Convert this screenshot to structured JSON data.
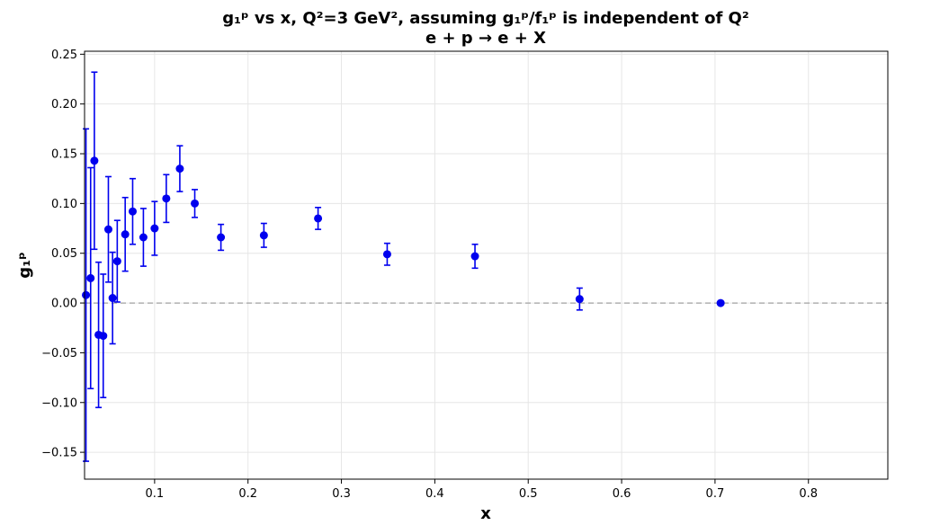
{
  "chart_data": {
    "type": "scatter",
    "title": "g₁ᵖ vs x, Q²=3 GeV²,  assuming g₁ᵖ/f₁ᵖ is independent of Q²",
    "subtitle": "e + p → e + X",
    "xlabel": "x",
    "ylabel": "g₁ᵖ",
    "xlim": [
      0.025,
      0.885
    ],
    "ylim": [
      -0.177,
      0.253
    ],
    "xticks": [
      0.1,
      0.2,
      0.3,
      0.4,
      0.5,
      0.6,
      0.7,
      0.8
    ],
    "xtick_labels": [
      "0.1",
      "0.2",
      "0.3",
      "0.4",
      "0.5",
      "0.6",
      "0.7",
      "0.8"
    ],
    "yticks": [
      -0.15,
      -0.1,
      -0.05,
      0.0,
      0.05,
      0.1,
      0.15,
      0.2,
      0.25
    ],
    "ytick_labels": [
      "−0.15",
      "−0.10",
      "−0.05",
      "0.00",
      "0.05",
      "0.10",
      "0.15",
      "0.20",
      "0.25"
    ],
    "grid": true,
    "legend": null,
    "reference_line": {
      "y": 0.0,
      "style": "dashed",
      "color": "#b0b0b0"
    },
    "marker_color": "#0000ee",
    "series": [
      {
        "x": [
          0.0265,
          0.0315,
          0.0355,
          0.04,
          0.045,
          0.0505,
          0.055,
          0.06,
          0.0685,
          0.0765,
          0.088,
          0.1,
          0.1125,
          0.127,
          0.143,
          0.171,
          0.217,
          0.275,
          0.349,
          0.443,
          0.555,
          0.706
        ],
        "y": [
          0.008,
          0.025,
          0.143,
          -0.032,
          -0.033,
          0.074,
          0.005,
          0.042,
          0.069,
          0.092,
          0.066,
          0.075,
          0.105,
          0.135,
          0.1,
          0.066,
          0.068,
          0.085,
          0.049,
          0.047,
          0.004,
          0.0
        ],
        "y_error": [
          0.167,
          0.111,
          0.089,
          0.073,
          0.062,
          0.053,
          0.046,
          0.041,
          0.037,
          0.033,
          0.029,
          0.027,
          0.024,
          0.023,
          0.014,
          0.013,
          0.012,
          0.011,
          0.011,
          0.012,
          0.011,
          0.0
        ]
      }
    ]
  }
}
